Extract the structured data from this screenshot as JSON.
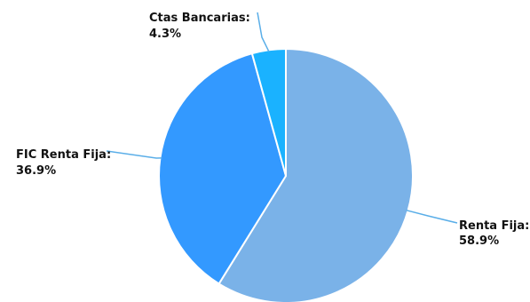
{
  "chart_data": {
    "type": "pie",
    "slices": [
      {
        "label": "Renta Fija",
        "value": 58.9,
        "value_label": "58.9%",
        "color": "#7ab2e8"
      },
      {
        "label": "FIC Renta Fija",
        "value": 36.9,
        "value_label": "36.9%",
        "color": "#3399ff"
      },
      {
        "label": "Ctas Bancarias",
        "value": 4.3,
        "value_label": "4.3%",
        "color": "#1ab2ff"
      }
    ],
    "start_angle": "12 o'clock",
    "direction": "clockwise"
  }
}
